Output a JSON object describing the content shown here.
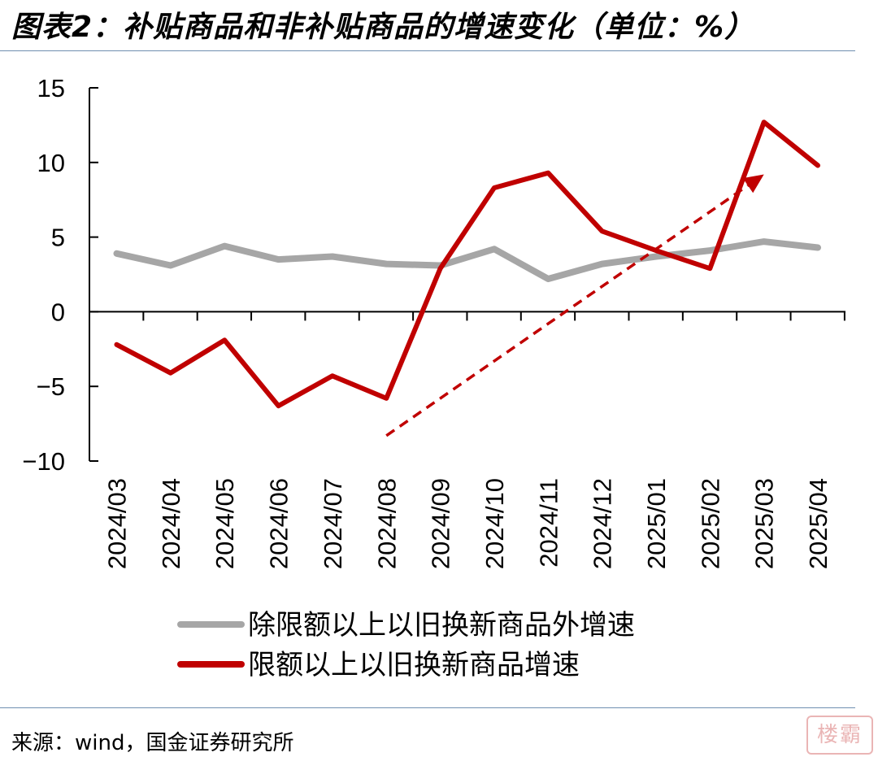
{
  "header": {
    "title": "图表2：补贴商品和非补贴商品的增速变化（单位：%）"
  },
  "footer": {
    "source": "来源：wind，国金证券研究所"
  },
  "watermark": {
    "text": "楼霸"
  },
  "chart_data": {
    "type": "line",
    "title": "",
    "ylim": [
      -10,
      15
    ],
    "yticks": [
      "15",
      "10",
      "5",
      "0",
      "−5",
      "−10"
    ],
    "categories": [
      "2024/03",
      "2024/04",
      "2024/05",
      "2024/06",
      "2024/07",
      "2024/08",
      "2024/09",
      "2024/10",
      "2024/11",
      "2024/12",
      "2025/01",
      "2025/02",
      "2025/03",
      "2025/04"
    ],
    "series": [
      {
        "name": "除限额以上以旧换新商品外增速",
        "color": "#a6a6a6",
        "values": [
          3.9,
          3.1,
          4.4,
          3.5,
          3.7,
          3.2,
          3.1,
          4.2,
          2.2,
          3.2,
          3.7,
          4.1,
          4.7,
          4.3
        ]
      },
      {
        "name": "限额以上以旧换新商品增速",
        "color": "#c00000",
        "values": [
          -2.2,
          -4.1,
          -1.9,
          -6.3,
          -4.3,
          -5.8,
          2.9,
          8.3,
          9.3,
          5.4,
          4.1,
          2.9,
          12.7,
          9.8
        ]
      }
    ],
    "trend_arrow": {
      "from": {
        "x": "2024/08",
        "y": -8.3
      },
      "to": {
        "x": "2025/03",
        "y": 9.2
      },
      "style": "dashed",
      "color": "#c00000"
    },
    "grid": false,
    "legend": "bottom"
  }
}
